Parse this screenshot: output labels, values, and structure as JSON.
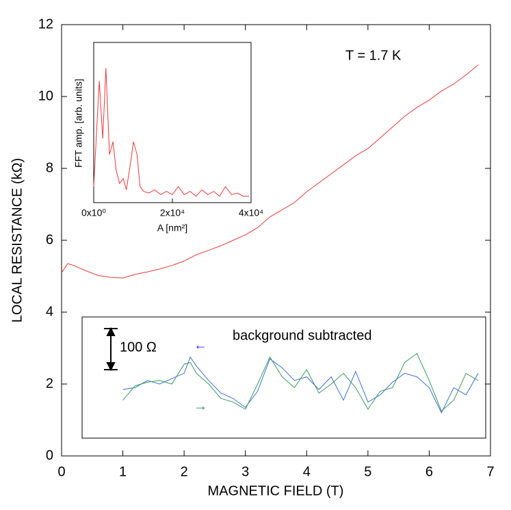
{
  "chart_data": [
    {
      "type": "line",
      "xlabel": "MAGNETIC FIELD (T)",
      "ylabel": "LOCAL RESISTANCE (kΩ)",
      "xlim": [
        0,
        7
      ],
      "xticks": [
        0,
        1,
        2,
        3,
        4,
        5,
        6,
        7
      ],
      "ylim": [
        0,
        12
      ],
      "yticks": [
        0,
        2,
        4,
        6,
        8,
        10,
        12
      ],
      "series": [
        {
          "color": "#e8383a",
          "x": [
            0,
            0.1,
            0.2,
            0.4,
            0.6,
            0.8,
            1.0,
            1.2,
            1.4,
            1.6,
            1.8,
            2.0,
            2.2,
            2.4,
            2.6,
            2.8,
            3.0,
            3.2,
            3.4,
            3.6,
            3.8,
            4.0,
            4.2,
            4.4,
            4.6,
            4.8,
            5.0,
            5.2,
            5.4,
            5.6,
            5.8,
            6.0,
            6.2,
            6.4,
            6.6,
            6.8
          ],
          "values": [
            5.1,
            5.35,
            5.3,
            5.15,
            5.02,
            4.97,
            4.95,
            5.05,
            5.12,
            5.2,
            5.3,
            5.42,
            5.6,
            5.72,
            5.85,
            6.0,
            6.15,
            6.35,
            6.65,
            6.85,
            7.05,
            7.35,
            7.6,
            7.85,
            8.1,
            8.35,
            8.55,
            8.85,
            9.15,
            9.45,
            9.7,
            9.9,
            10.15,
            10.35,
            10.6,
            10.88
          ]
        },
        {
          "color": "#3a6fd8",
          "x": [
            1.0,
            1.2,
            1.4,
            1.6,
            1.8,
            2.0,
            2.1,
            2.2,
            2.4,
            2.6,
            2.8,
            3.0,
            3.2,
            3.4,
            3.6,
            3.8,
            4.0,
            4.2,
            4.4,
            4.6,
            4.8,
            5.0,
            5.2,
            5.4,
            5.6,
            5.8,
            6.0,
            6.2,
            6.4,
            6.6,
            6.8
          ],
          "values": [
            1.85,
            1.9,
            2.1,
            2.0,
            2.15,
            2.3,
            2.75,
            2.5,
            2.1,
            1.75,
            1.6,
            1.35,
            1.8,
            2.7,
            2.45,
            2.1,
            2.2,
            1.85,
            2.2,
            1.55,
            2.35,
            1.5,
            1.7,
            2.05,
            2.3,
            2.2,
            1.9,
            1.2,
            1.9,
            1.7,
            2.3
          ]
        },
        {
          "color": "#3a9a5a",
          "x": [
            1.0,
            1.2,
            1.4,
            1.6,
            1.8,
            2.0,
            2.1,
            2.2,
            2.4,
            2.6,
            2.8,
            3.0,
            3.2,
            3.4,
            3.6,
            3.8,
            4.0,
            4.2,
            4.4,
            4.6,
            4.8,
            5.0,
            5.2,
            5.4,
            5.6,
            5.8,
            6.0,
            6.2,
            6.4,
            6.6,
            6.8
          ],
          "values": [
            1.55,
            1.95,
            2.05,
            2.1,
            2.0,
            2.55,
            2.6,
            2.3,
            2.0,
            1.6,
            1.5,
            1.3,
            2.0,
            2.75,
            2.2,
            1.9,
            2.4,
            1.75,
            2.0,
            2.3,
            1.9,
            1.3,
            1.8,
            1.9,
            2.6,
            2.85,
            2.1,
            1.25,
            1.55,
            2.3,
            2.1
          ]
        }
      ],
      "annotations": [
        {
          "text": "T = 1.7 K",
          "color": "#000000"
        },
        {
          "text": "background subtracted",
          "color": "#000000"
        },
        {
          "text": "100 Ω",
          "color": "#000000"
        },
        {
          "text": "←",
          "color": "#2a2ae0"
        },
        {
          "text": "→",
          "color": "#2e8b57"
        }
      ]
    },
    {
      "type": "line",
      "xlabel": "A [nm²]",
      "ylabel": "FFT amp. [arb. units]",
      "xlim": [
        0,
        40000
      ],
      "xticks": [
        {
          "value": 0,
          "label": "0x10⁰"
        },
        {
          "value": 20000,
          "label": "2x10⁴"
        },
        {
          "value": 40000,
          "label": "4x10⁴"
        }
      ],
      "ylim": [
        0,
        1
      ],
      "series": [
        {
          "color": "#e8383a",
          "x": [
            0,
            1400,
            2300,
            3100,
            4000,
            4900,
            5700,
            6600,
            7500,
            8300,
            9200,
            10100,
            11000,
            11800,
            12700,
            14000,
            15500,
            17000,
            18500,
            20000,
            21500,
            23000,
            24500,
            26000,
            27500,
            29000,
            30500,
            32000,
            33500,
            35000,
            36500,
            38000,
            39500
          ],
          "values": [
            0.1,
            0.76,
            0.4,
            0.84,
            0.3,
            0.38,
            0.2,
            0.12,
            0.15,
            0.08,
            0.22,
            0.38,
            0.3,
            0.1,
            0.07,
            0.06,
            0.08,
            0.05,
            0.07,
            0.05,
            0.1,
            0.05,
            0.07,
            0.04,
            0.08,
            0.05,
            0.07,
            0.04,
            0.1,
            0.05,
            0.06,
            0.04,
            0.04
          ]
        }
      ]
    }
  ]
}
